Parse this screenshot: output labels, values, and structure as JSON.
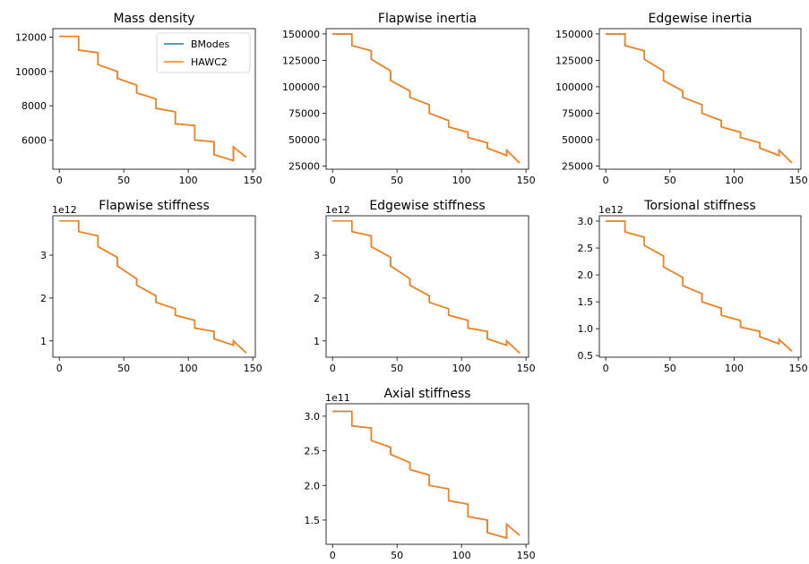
{
  "figure": {
    "background": "#ffffff"
  },
  "colors": {
    "bmodes": "#1f77b4",
    "hawc2": "#ff7f0e",
    "axis": "#000000"
  },
  "legend": {
    "placement": "top-right",
    "entries": [
      "BModes",
      "HAWC2"
    ]
  },
  "chart_data": [
    {
      "type": "line",
      "title": "Mass density",
      "offset_text": "",
      "xlim": [
        -5,
        152
      ],
      "ylim": [
        4300,
        12500
      ],
      "xticks": [
        0,
        50,
        100,
        150
      ],
      "yticks": [
        6000,
        8000,
        10000,
        12000
      ],
      "ytick_labels": [
        "6000",
        "8000",
        "10000",
        "12000"
      ],
      "legend": true,
      "series": [
        {
          "name": "BModes",
          "x": [
            0,
            15,
            15,
            30,
            30,
            45,
            45,
            60,
            60,
            75,
            75,
            90,
            90,
            105,
            105,
            120,
            120,
            135,
            135,
            145
          ],
          "y": [
            12050,
            12050,
            11250,
            11100,
            10400,
            10000,
            9600,
            9200,
            8750,
            8400,
            7850,
            7650,
            6950,
            6850,
            6000,
            5900,
            5150,
            4800,
            5600,
            5000
          ]
        },
        {
          "name": "HAWC2",
          "x": [
            0,
            15,
            15,
            30,
            30,
            45,
            45,
            60,
            60,
            75,
            75,
            90,
            90,
            105,
            105,
            120,
            120,
            135,
            135,
            145
          ],
          "y": [
            12050,
            12050,
            11250,
            11100,
            10400,
            10000,
            9600,
            9200,
            8750,
            8400,
            7850,
            7650,
            6950,
            6850,
            6000,
            5900,
            5150,
            4800,
            5600,
            5000
          ]
        }
      ]
    },
    {
      "type": "line",
      "title": "Flapwise inertia",
      "offset_text": "",
      "xlim": [
        -5,
        152
      ],
      "ylim": [
        22000,
        155000
      ],
      "xticks": [
        0,
        50,
        100,
        150
      ],
      "yticks": [
        25000,
        50000,
        75000,
        100000,
        125000,
        150000
      ],
      "ytick_labels": [
        "25000",
        "50000",
        "75000",
        "100000",
        "125000",
        "150000"
      ],
      "legend": false,
      "series": [
        {
          "name": "BModes",
          "x": [
            0,
            15,
            15,
            30,
            30,
            45,
            45,
            60,
            60,
            75,
            75,
            90,
            90,
            105,
            105,
            120,
            120,
            135,
            135,
            145
          ],
          "y": [
            150000,
            150000,
            139000,
            134000,
            126000,
            115000,
            106000,
            96000,
            90000,
            83000,
            75000,
            68000,
            62000,
            57000,
            52000,
            47000,
            42000,
            35000,
            40000,
            28000
          ]
        },
        {
          "name": "HAWC2",
          "x": [
            0,
            15,
            15,
            30,
            30,
            45,
            45,
            60,
            60,
            75,
            75,
            90,
            90,
            105,
            105,
            120,
            120,
            135,
            135,
            145
          ],
          "y": [
            150000,
            150000,
            139000,
            134000,
            126000,
            115000,
            106000,
            96000,
            90000,
            83000,
            75000,
            68000,
            62000,
            57000,
            52000,
            47000,
            42000,
            35000,
            40000,
            28000
          ]
        }
      ]
    },
    {
      "type": "line",
      "title": "Edgewise inertia",
      "offset_text": "",
      "xlim": [
        -5,
        152
      ],
      "ylim": [
        22000,
        155000
      ],
      "xticks": [
        0,
        50,
        100,
        150
      ],
      "yticks": [
        25000,
        50000,
        75000,
        100000,
        125000,
        150000
      ],
      "ytick_labels": [
        "25000",
        "50000",
        "75000",
        "100000",
        "125000",
        "150000"
      ],
      "legend": false,
      "series": [
        {
          "name": "BModes",
          "x": [
            0,
            15,
            15,
            30,
            30,
            45,
            45,
            60,
            60,
            75,
            75,
            90,
            90,
            105,
            105,
            120,
            120,
            135,
            135,
            145
          ],
          "y": [
            150000,
            150000,
            139000,
            134000,
            126000,
            115000,
            106000,
            96000,
            90000,
            83000,
            75000,
            68000,
            62000,
            57000,
            52000,
            47000,
            42000,
            35000,
            40000,
            28000
          ]
        },
        {
          "name": "HAWC2",
          "x": [
            0,
            15,
            15,
            30,
            30,
            45,
            45,
            60,
            60,
            75,
            75,
            90,
            90,
            105,
            105,
            120,
            120,
            135,
            135,
            145
          ],
          "y": [
            150000,
            150000,
            139000,
            134000,
            126000,
            115000,
            106000,
            96000,
            90000,
            83000,
            75000,
            68000,
            62000,
            57000,
            52000,
            47000,
            42000,
            35000,
            40000,
            28000
          ]
        }
      ]
    },
    {
      "type": "line",
      "title": "Flapwise stiffness",
      "offset_text": "1e12",
      "xlim": [
        -5,
        152
      ],
      "ylim": [
        0.62,
        3.92
      ],
      "xticks": [
        0,
        50,
        100,
        150
      ],
      "yticks": [
        1,
        2,
        3
      ],
      "ytick_labels": [
        "1",
        "2",
        "3"
      ],
      "legend": false,
      "series": [
        {
          "name": "BModes",
          "x": [
            0,
            15,
            15,
            30,
            30,
            45,
            45,
            60,
            60,
            75,
            75,
            90,
            90,
            105,
            105,
            120,
            120,
            135,
            135,
            145
          ],
          "y": [
            3.8,
            3.8,
            3.55,
            3.45,
            3.2,
            2.95,
            2.75,
            2.45,
            2.3,
            2.05,
            1.9,
            1.75,
            1.6,
            1.48,
            1.3,
            1.22,
            1.05,
            0.9,
            1.0,
            0.72
          ]
        },
        {
          "name": "HAWC2",
          "x": [
            0,
            15,
            15,
            30,
            30,
            45,
            45,
            60,
            60,
            75,
            75,
            90,
            90,
            105,
            105,
            120,
            120,
            135,
            135,
            145
          ],
          "y": [
            3.8,
            3.8,
            3.55,
            3.45,
            3.2,
            2.95,
            2.75,
            2.45,
            2.3,
            2.05,
            1.9,
            1.75,
            1.6,
            1.48,
            1.3,
            1.22,
            1.05,
            0.9,
            1.0,
            0.72
          ]
        }
      ]
    },
    {
      "type": "line",
      "title": "Edgewise stiffness",
      "offset_text": "1e12",
      "xlim": [
        -5,
        152
      ],
      "ylim": [
        0.62,
        3.92
      ],
      "xticks": [
        0,
        50,
        100,
        150
      ],
      "yticks": [
        1,
        2,
        3
      ],
      "ytick_labels": [
        "1",
        "2",
        "3"
      ],
      "legend": false,
      "series": [
        {
          "name": "BModes",
          "x": [
            0,
            15,
            15,
            30,
            30,
            45,
            45,
            60,
            60,
            75,
            75,
            90,
            90,
            105,
            105,
            120,
            120,
            135,
            135,
            145
          ],
          "y": [
            3.8,
            3.8,
            3.55,
            3.45,
            3.2,
            2.95,
            2.75,
            2.45,
            2.3,
            2.05,
            1.9,
            1.75,
            1.6,
            1.48,
            1.3,
            1.22,
            1.05,
            0.9,
            1.0,
            0.72
          ]
        },
        {
          "name": "HAWC2",
          "x": [
            0,
            15,
            15,
            30,
            30,
            45,
            45,
            60,
            60,
            75,
            75,
            90,
            90,
            105,
            105,
            120,
            120,
            135,
            135,
            145
          ],
          "y": [
            3.8,
            3.8,
            3.55,
            3.45,
            3.2,
            2.95,
            2.75,
            2.45,
            2.3,
            2.05,
            1.9,
            1.75,
            1.6,
            1.48,
            1.3,
            1.22,
            1.05,
            0.9,
            1.0,
            0.72
          ]
        }
      ]
    },
    {
      "type": "line",
      "title": "Torsional stiffness",
      "offset_text": "1e12",
      "xlim": [
        -5,
        152
      ],
      "ylim": [
        0.47,
        3.1
      ],
      "xticks": [
        0,
        50,
        100,
        150
      ],
      "yticks": [
        0.5,
        1.0,
        1.5,
        2.0,
        2.5,
        3.0
      ],
      "ytick_labels": [
        "0.5",
        "1.0",
        "1.5",
        "2.0",
        "2.5",
        "3.0"
      ],
      "legend": false,
      "series": [
        {
          "name": "BModes",
          "x": [
            0,
            15,
            15,
            30,
            30,
            45,
            45,
            60,
            60,
            75,
            75,
            90,
            90,
            105,
            105,
            120,
            120,
            135,
            135,
            145
          ],
          "y": [
            3.0,
            3.0,
            2.8,
            2.7,
            2.55,
            2.35,
            2.15,
            1.95,
            1.8,
            1.65,
            1.5,
            1.38,
            1.25,
            1.15,
            1.03,
            0.95,
            0.85,
            0.72,
            0.8,
            0.58
          ]
        },
        {
          "name": "HAWC2",
          "x": [
            0,
            15,
            15,
            30,
            30,
            45,
            45,
            60,
            60,
            75,
            75,
            90,
            90,
            105,
            105,
            120,
            120,
            135,
            135,
            145
          ],
          "y": [
            3.0,
            3.0,
            2.8,
            2.7,
            2.55,
            2.35,
            2.15,
            1.95,
            1.8,
            1.65,
            1.5,
            1.38,
            1.25,
            1.15,
            1.03,
            0.95,
            0.85,
            0.72,
            0.8,
            0.58
          ]
        }
      ]
    },
    {
      "type": "line",
      "title": "Axial stiffness",
      "offset_text": "1e11",
      "xlim": [
        -5,
        152
      ],
      "ylim": [
        1.15,
        3.18
      ],
      "xticks": [
        0,
        50,
        100,
        150
      ],
      "yticks": [
        1.5,
        2.0,
        2.5,
        3.0
      ],
      "ytick_labels": [
        "1.5",
        "2.0",
        "2.5",
        "3.0"
      ],
      "legend": false,
      "series": [
        {
          "name": "BModes",
          "x": [
            0,
            15,
            15,
            30,
            30,
            45,
            45,
            60,
            60,
            75,
            75,
            90,
            90,
            105,
            105,
            120,
            120,
            135,
            135,
            145
          ],
          "y": [
            3.07,
            3.07,
            2.86,
            2.83,
            2.65,
            2.55,
            2.45,
            2.33,
            2.23,
            2.15,
            2.0,
            1.95,
            1.78,
            1.73,
            1.55,
            1.5,
            1.32,
            1.24,
            1.44,
            1.28
          ]
        },
        {
          "name": "HAWC2",
          "x": [
            0,
            15,
            15,
            30,
            30,
            45,
            45,
            60,
            60,
            75,
            75,
            90,
            90,
            105,
            105,
            120,
            120,
            135,
            135,
            145
          ],
          "y": [
            3.07,
            3.07,
            2.86,
            2.83,
            2.65,
            2.55,
            2.45,
            2.33,
            2.23,
            2.15,
            2.0,
            1.95,
            1.78,
            1.73,
            1.55,
            1.5,
            1.32,
            1.24,
            1.44,
            1.28
          ]
        }
      ]
    }
  ]
}
